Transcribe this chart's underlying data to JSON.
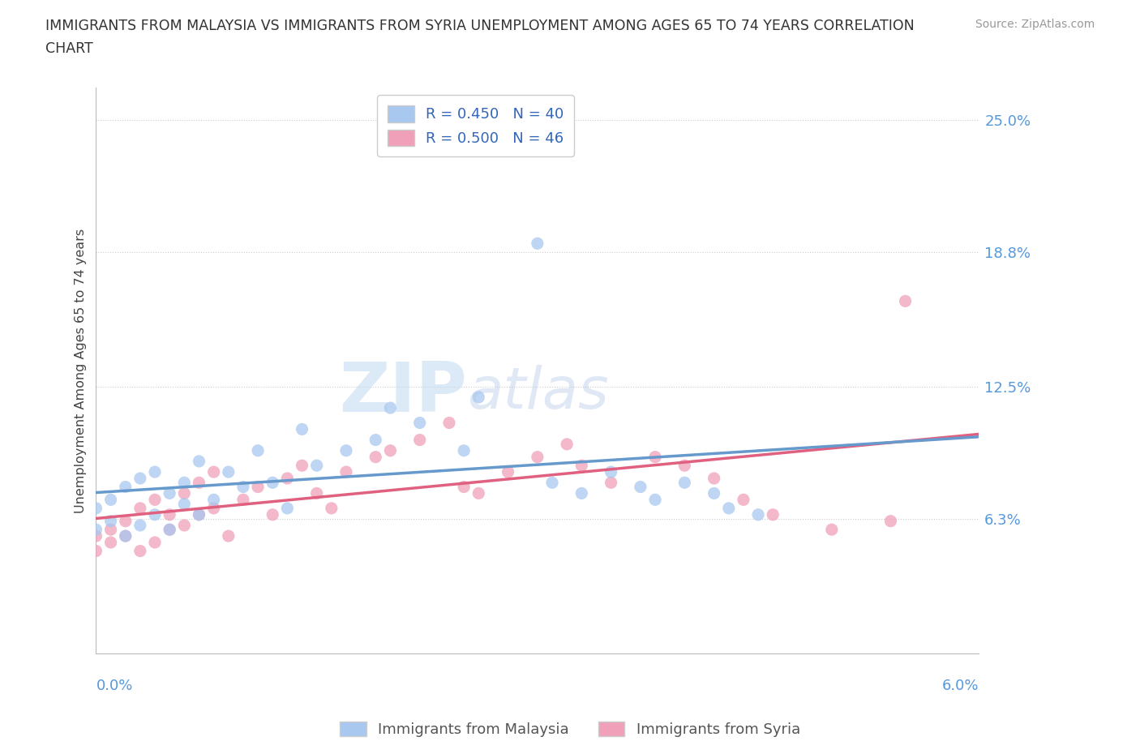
{
  "title_line1": "IMMIGRANTS FROM MALAYSIA VS IMMIGRANTS FROM SYRIA UNEMPLOYMENT AMONG AGES 65 TO 74 YEARS CORRELATION",
  "title_line2": "CHART",
  "source": "Source: ZipAtlas.com",
  "xmin": 0.0,
  "xmax": 0.06,
  "ymin": 0.0,
  "ymax": 0.265,
  "malaysia_R": 0.45,
  "malaysia_N": 40,
  "syria_R": 0.5,
  "syria_N": 46,
  "malaysia_color": "#a8c8f0",
  "syria_color": "#f0a0b8",
  "malaysia_line_color": "#6699cc",
  "syria_line_color": "#e06080",
  "yticks": [
    0.063,
    0.125,
    0.188,
    0.25
  ],
  "ytick_labels": [
    "6.3%",
    "12.5%",
    "18.8%",
    "25.0%"
  ],
  "watermark_zip": "ZIP",
  "watermark_atlas": "atlas"
}
